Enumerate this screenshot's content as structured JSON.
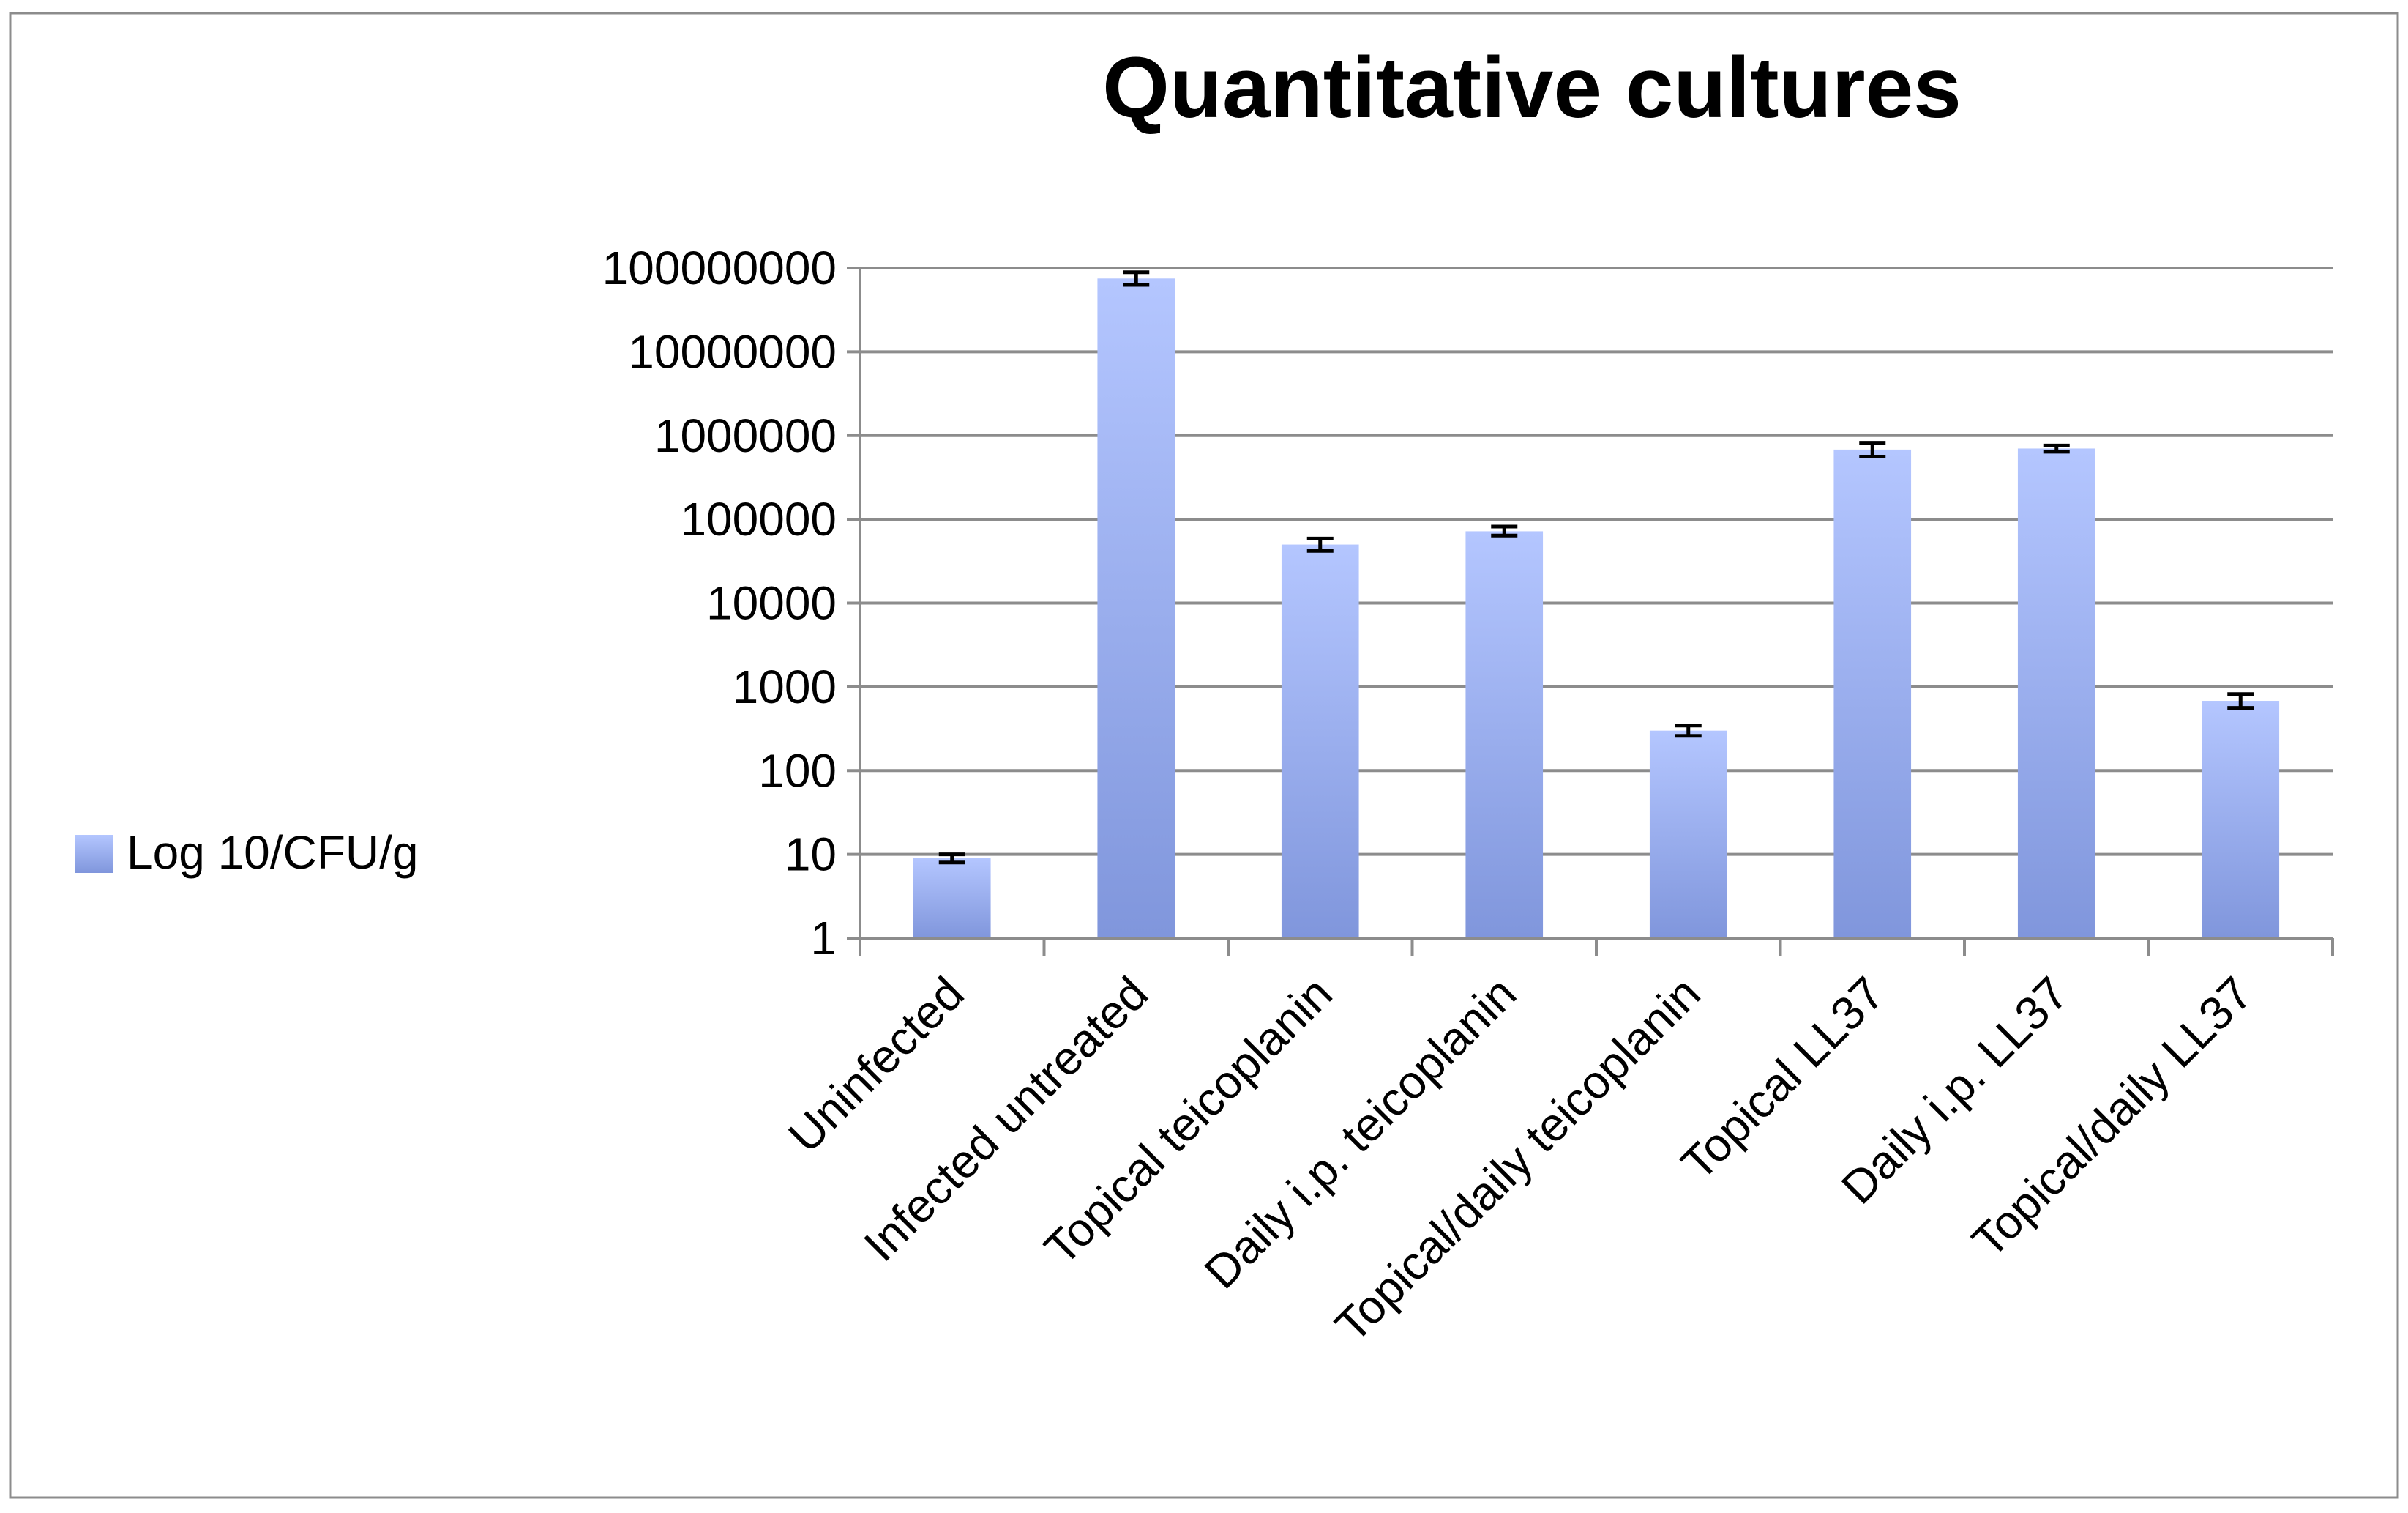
{
  "chart_data": {
    "type": "bar",
    "title": "Quantitative cultures",
    "xlabel": "",
    "ylabel": "",
    "y_scale": "log10",
    "ylim": [
      1,
      100000000
    ],
    "y_ticks": [
      "1",
      "10",
      "100",
      "1000",
      "10000",
      "100000",
      "1000000",
      "10000000",
      "100000000"
    ],
    "grid": true,
    "legend_position": "left",
    "categories": [
      "Uninfected",
      "Infected untreated",
      "Topical teicoplanin",
      "Daily i.p. teicoplanin",
      "Topical/daily teicoplanin",
      "Topical LL37",
      "Daily i.p. LL37",
      "Topical/daily LL37"
    ],
    "series": [
      {
        "name": "Log 10/CFU/g",
        "color_light": "#b4c6ff",
        "color_dark": "#8096dc",
        "values": [
          9,
          75000000,
          50000,
          72000,
          300,
          680000,
          700000,
          680
        ],
        "error_low": [
          8,
          63000000,
          42000,
          64000,
          260,
          560000,
          640000,
          560
        ],
        "error_high": [
          10,
          89000000,
          59000,
          82000,
          345,
          820000,
          760000,
          820
        ]
      }
    ],
    "colors": {
      "grid": "#8c8c8c",
      "frame": "#8c8c8c",
      "error_bar": "#000000"
    }
  }
}
